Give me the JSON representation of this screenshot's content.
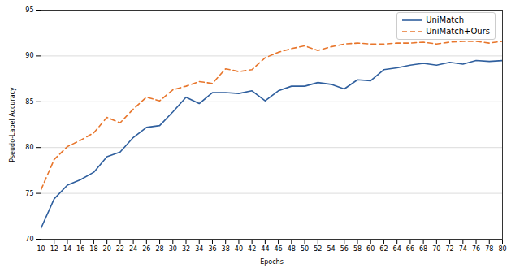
{
  "chart_data": {
    "type": "line",
    "x_label": "Epochs",
    "y_label": "Pseudo-Label Accuracy",
    "x": [
      10,
      12,
      14,
      16,
      18,
      20,
      22,
      24,
      26,
      28,
      30,
      32,
      34,
      36,
      38,
      40,
      42,
      44,
      46,
      48,
      50,
      52,
      54,
      56,
      58,
      60,
      62,
      64,
      66,
      68,
      70,
      72,
      74,
      76,
      78,
      80
    ],
    "xlim": [
      10,
      80
    ],
    "xticks": [
      10,
      12,
      14,
      16,
      18,
      20,
      22,
      24,
      26,
      28,
      30,
      32,
      34,
      36,
      38,
      40,
      42,
      44,
      46,
      48,
      50,
      52,
      54,
      56,
      58,
      60,
      62,
      64,
      66,
      68,
      70,
      72,
      74,
      76,
      78,
      80
    ],
    "ylim": [
      70,
      95
    ],
    "yticks": [
      70,
      75,
      80,
      85,
      90,
      95
    ],
    "grid": true,
    "legend": "upper right",
    "series": [
      {
        "name": "UniMatch",
        "color": "#2f5f9e",
        "line_style": "solid",
        "values": [
          71.2,
          74.4,
          75.9,
          76.5,
          77.3,
          79.0,
          79.5,
          81.1,
          82.2,
          82.4,
          83.9,
          85.5,
          84.8,
          86.0,
          86.0,
          85.9,
          86.2,
          85.1,
          86.2,
          86.7,
          86.7,
          87.1,
          86.9,
          86.4,
          87.4,
          87.3,
          88.5,
          88.7,
          89.0,
          89.2,
          89.0,
          89.3,
          89.1,
          89.5,
          89.4,
          89.5
        ]
      },
      {
        "name": "UniMatch+Ours",
        "color": "#e8762c",
        "line_style": "dashed",
        "values": [
          75.4,
          78.7,
          80.1,
          80.8,
          81.6,
          83.3,
          82.7,
          84.2,
          85.5,
          85.1,
          86.3,
          86.7,
          87.2,
          87.0,
          88.6,
          88.3,
          88.5,
          89.8,
          90.4,
          90.8,
          91.1,
          90.6,
          91.0,
          91.3,
          91.4,
          91.3,
          91.3,
          91.4,
          91.4,
          91.5,
          91.3,
          91.5,
          91.6,
          91.6,
          91.4,
          91.6
        ]
      }
    ]
  }
}
